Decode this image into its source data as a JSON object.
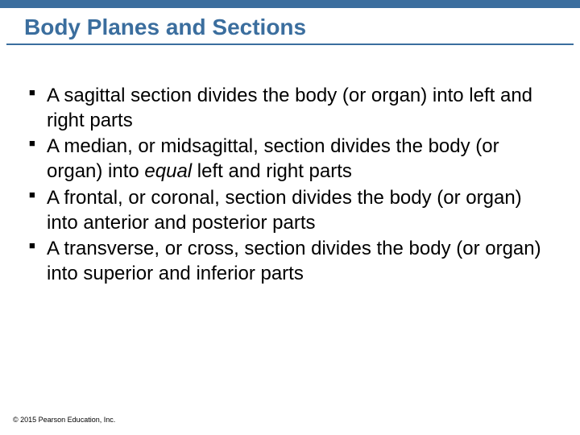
{
  "colors": {
    "accent": "#3b6e9e",
    "text": "#000000",
    "background": "#ffffff"
  },
  "typography": {
    "title_fontsize": 28,
    "body_fontsize": 24,
    "copyright_fontsize": 9,
    "font_family": "Arial"
  },
  "title": "Body Planes and Sections",
  "bullets": {
    "b1_pre": "A sagittal section divides the body (or organ) into left and right parts",
    "b2_pre": "A median, or midsagittal, section divides the body (or organ) into ",
    "b2_em": "equal",
    "b2_post": " left and right parts",
    "b3_pre": "A frontal, or coronal, section divides the body (or organ) into anterior and posterior parts",
    "b4_pre": "A transverse, or cross, section divides the body (or organ) into superior and inferior parts"
  },
  "copyright": "© 2015 Pearson Education, Inc."
}
